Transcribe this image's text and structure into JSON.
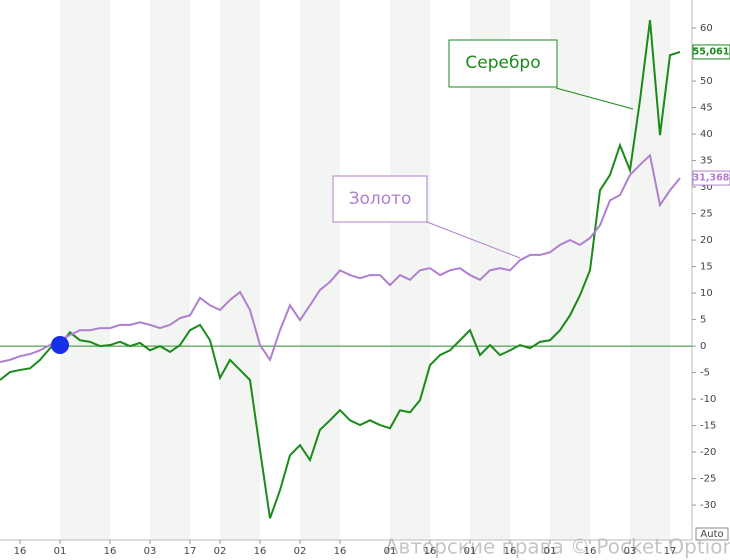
{
  "chart_data": {
    "type": "line",
    "categories": [
      null,
      null,
      "16",
      null,
      null,
      null,
      "01",
      null,
      null,
      null,
      null,
      "16",
      null,
      null,
      null,
      "03",
      null,
      null,
      null,
      "17",
      null,
      null,
      "02",
      null,
      null,
      null,
      "16",
      null,
      null,
      null,
      "02",
      null,
      null,
      null,
      "16",
      null,
      null,
      null,
      null,
      "01",
      null,
      null,
      null,
      "16",
      null,
      null,
      null,
      "01",
      null,
      null,
      null,
      "16",
      null,
      null,
      null,
      "01",
      null,
      null,
      null,
      "16",
      null,
      null,
      null,
      "03",
      null,
      null,
      null,
      "17",
      null
    ],
    "series": [
      {
        "name": "Серебро",
        "color": "#1a8a1a",
        "values": [
          -6.4,
          -4.9,
          -4.5,
          -4.2,
          -2.6,
          -0.4,
          0.2,
          2.6,
          1.1,
          0.8,
          0,
          0.2,
          0.8,
          0,
          0.6,
          -0.8,
          0,
          -1.1,
          0.2,
          3.0,
          4.0,
          1.1,
          -6.0,
          -2.6,
          -4.5,
          -6.4,
          -19.6,
          -32.5,
          -27.2,
          -20.6,
          -18.7,
          -21.5,
          -15.8,
          -14.0,
          -12.1,
          -14.0,
          -14.9,
          -14.0,
          -14.9,
          -15.5,
          -12.1,
          -12.5,
          -10.2,
          -3.6,
          -1.7,
          -0.8,
          1.1,
          3.0,
          -1.7,
          0.2,
          -1.7,
          -0.8,
          0.2,
          -0.4,
          0.8,
          1.1,
          3.0,
          5.8,
          9.6,
          14.3,
          29.4,
          32.3,
          37.9,
          33.2,
          46.4,
          61.5,
          39.8,
          54.9,
          55.5
        ]
      },
      {
        "name": "Золото",
        "color": "#b07fd0",
        "values": [
          -3.0,
          -2.6,
          -1.9,
          -1.5,
          -0.8,
          0.2,
          1.1,
          2.1,
          3.0,
          3.0,
          3.4,
          3.4,
          4.0,
          4.0,
          4.5,
          4.0,
          3.4,
          4.0,
          5.3,
          5.8,
          9.1,
          7.7,
          6.8,
          8.7,
          10.2,
          6.8,
          0.2,
          -2.6,
          3.0,
          7.7,
          4.9,
          7.7,
          10.6,
          12.1,
          14.3,
          13.4,
          12.8,
          13.4,
          13.4,
          11.5,
          13.4,
          12.5,
          14.3,
          14.7,
          13.4,
          14.3,
          14.7,
          13.4,
          12.5,
          14.3,
          14.7,
          14.3,
          16.2,
          17.2,
          17.2,
          17.7,
          19.1,
          20.0,
          19.1,
          20.4,
          22.8,
          27.5,
          28.5,
          32.3,
          34.2,
          36.0,
          26.6,
          29.4,
          31.7
        ]
      }
    ],
    "price_tags": [
      "55,061",
      "31,368"
    ],
    "ylim": [
      -34.7,
      65.3
    ],
    "yticks": [
      -30,
      -25,
      -20,
      -15,
      -10,
      -5,
      0,
      5,
      10,
      15,
      20,
      25,
      30,
      35,
      40,
      45,
      50,
      55,
      60
    ],
    "zero_line_color": "#2a8a2a",
    "auto_label": "Auto",
    "watermark": "Авторские права © Pocket Option"
  }
}
